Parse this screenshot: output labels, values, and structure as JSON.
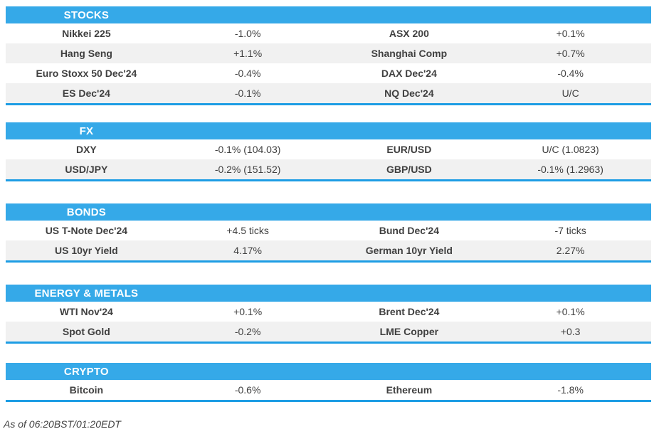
{
  "colors": {
    "header_blue": "#35A9E8",
    "section_border_blue": "#1D9DE4",
    "row_alt_bg": "#F1F1F1",
    "text": "#404040",
    "header_text": "#FFFFFF"
  },
  "footer": {
    "as_of": "As of 06:20BST/01:20EDT"
  },
  "chart_data": [
    {
      "type": "table",
      "title": "STOCKS",
      "columns": [
        "instrument_left",
        "change_left",
        "instrument_right",
        "change_right"
      ],
      "rows": [
        [
          "Nikkei 225",
          "-1.0%",
          "ASX 200",
          "+0.1%"
        ],
        [
          "Hang Seng",
          "+1.1%",
          "Shanghai Comp",
          "+0.7%"
        ],
        [
          "Euro Stoxx 50 Dec'24",
          "-0.4%",
          "DAX Dec'24",
          "-0.4%"
        ],
        [
          "ES Dec'24",
          "-0.1%",
          "NQ Dec'24",
          "U/C"
        ]
      ]
    },
    {
      "type": "table",
      "title": "FX",
      "columns": [
        "instrument_left",
        "change_left",
        "instrument_right",
        "change_right"
      ],
      "rows": [
        [
          "DXY",
          "-0.1% (104.03)",
          "EUR/USD",
          "U/C (1.0823)"
        ],
        [
          "USD/JPY",
          "-0.2% (151.52)",
          "GBP/USD",
          "-0.1% (1.2963)"
        ]
      ]
    },
    {
      "type": "table",
      "title": "BONDS",
      "columns": [
        "instrument_left",
        "change_left",
        "instrument_right",
        "change_right"
      ],
      "rows": [
        [
          "US T-Note Dec'24",
          "+4.5 ticks",
          "Bund Dec'24",
          "-7 ticks"
        ],
        [
          "US 10yr Yield",
          "4.17%",
          "German 10yr Yield",
          "2.27%"
        ]
      ]
    },
    {
      "type": "table",
      "title": "ENERGY & METALS",
      "columns": [
        "instrument_left",
        "change_left",
        "instrument_right",
        "change_right"
      ],
      "rows": [
        [
          "WTI Nov'24",
          "+0.1%",
          "Brent Dec'24",
          "+0.1%"
        ],
        [
          "Spot Gold",
          "-0.2%",
          "LME Copper",
          "+0.3"
        ]
      ]
    },
    {
      "type": "table",
      "title": "CRYPTO",
      "columns": [
        "instrument_left",
        "change_left",
        "instrument_right",
        "change_right"
      ],
      "rows": [
        [
          "Bitcoin",
          "-0.6%",
          "Ethereum",
          "-1.8%"
        ]
      ]
    }
  ]
}
